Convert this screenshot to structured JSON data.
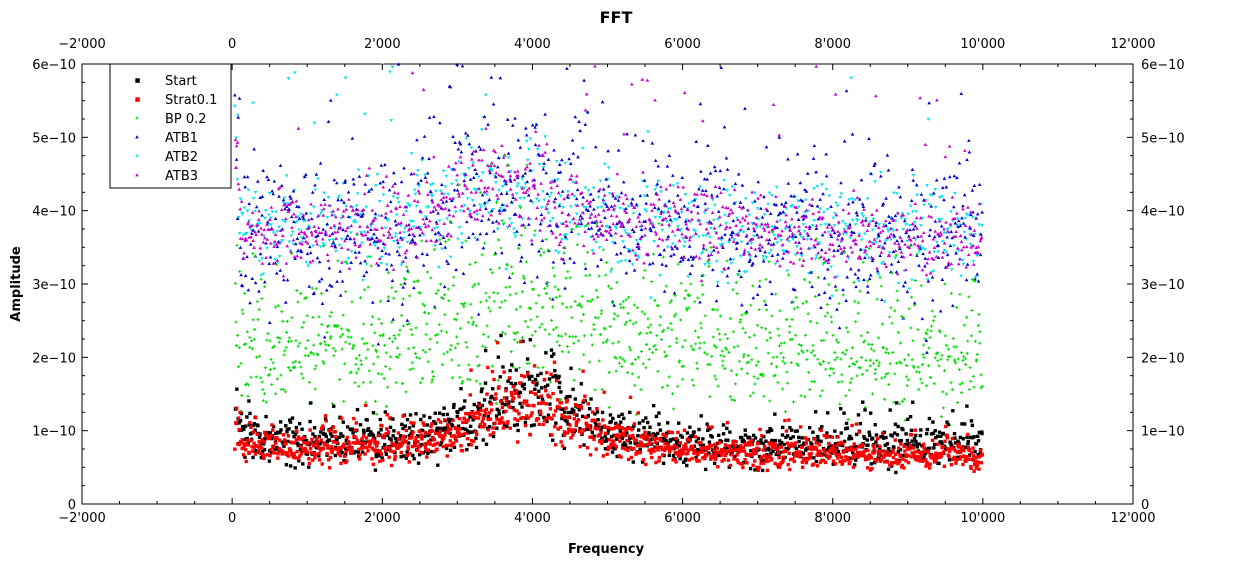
{
  "chart_data": {
    "type": "scatter",
    "title": "FFT",
    "xlabel": "Frequency",
    "ylabel": "Amplitude",
    "xlim": [
      -2000,
      12000
    ],
    "ylim": [
      0,
      6e-10
    ],
    "x_ticks": [
      -2000,
      0,
      2000,
      4000,
      6000,
      8000,
      10000,
      12000
    ],
    "x_tick_labels": [
      "−2'000",
      "0",
      "2'000",
      "4'000",
      "6'000",
      "8'000",
      "10'000",
      "12'000"
    ],
    "y_ticks": [
      0,
      1e-10,
      2e-10,
      3e-10,
      4e-10,
      5e-10,
      6e-10
    ],
    "y_tick_labels": [
      "0",
      "1e−10",
      "2e−10",
      "3e−10",
      "4e−10",
      "5e−10",
      "6e−10"
    ],
    "grid": false,
    "legend_position": "top-left",
    "x_range": [
      0,
      10000
    ],
    "series": [
      {
        "name": "Start",
        "color": "#000000",
        "marker": "square",
        "profile_x": [
          0,
          500,
          1000,
          1500,
          2000,
          2500,
          3000,
          3500,
          4000,
          4500,
          5000,
          5500,
          6000,
          7000,
          8000,
          9000,
          10000
        ],
        "profile_y": [
          1.05e-10,
          8.5e-11,
          8.5e-11,
          8.5e-11,
          9e-11,
          9.5e-11,
          1.05e-10,
          1.35e-10,
          1.55e-10,
          1.3e-10,
          1e-10,
          9e-11,
          8.5e-11,
          8e-11,
          8e-11,
          8e-11,
          8e-11
        ]
      },
      {
        "name": "Strat0.1",
        "color": "#ff0000",
        "marker": "square",
        "profile_x": [
          0,
          500,
          1000,
          1500,
          2000,
          2500,
          3000,
          3500,
          4000,
          4500,
          5000,
          5500,
          6000,
          7000,
          8000,
          9000,
          10000
        ],
        "profile_y": [
          8.5e-11,
          7.5e-11,
          7.5e-11,
          7.5e-11,
          8e-11,
          8.5e-11,
          9.5e-11,
          1.25e-10,
          1.4e-10,
          1.15e-10,
          9e-11,
          8e-11,
          7.5e-11,
          7e-11,
          7e-11,
          6.5e-11,
          6.5e-11
        ]
      },
      {
        "name": "BP 0.2",
        "color": "#00dd00",
        "marker": "plus",
        "profile_x": [
          0,
          1000,
          2000,
          3000,
          3500,
          4000,
          4500,
          5000,
          6000,
          7000,
          8000,
          9000,
          10000
        ],
        "profile_y": [
          2.1e-10,
          2.1e-10,
          2.2e-10,
          2.5e-10,
          2.7e-10,
          2.75e-10,
          2.6e-10,
          2.4e-10,
          2.25e-10,
          2.15e-10,
          2.15e-10,
          2.1e-10,
          2.1e-10
        ]
      },
      {
        "name": "ATB1",
        "color": "#0000cc",
        "marker": "triangle-up",
        "profile_x": [
          0,
          1000,
          2000,
          3000,
          3500,
          4000,
          4500,
          5000,
          6000,
          7000,
          8000,
          9000,
          10000
        ],
        "profile_y": [
          3.7e-10,
          3.7e-10,
          3.8e-10,
          4.2e-10,
          4.4e-10,
          4.3e-10,
          4.1e-10,
          3.9e-10,
          3.75e-10,
          3.7e-10,
          3.7e-10,
          3.65e-10,
          3.6e-10
        ]
      },
      {
        "name": "ATB2",
        "color": "#00e5ee",
        "marker": "triangle-down",
        "profile_x": [
          0,
          1000,
          2000,
          3000,
          3500,
          4000,
          4500,
          5000,
          6000,
          7000,
          8000,
          9000,
          10000
        ],
        "profile_y": [
          3.75e-10,
          3.75e-10,
          3.85e-10,
          4.15e-10,
          4.3e-10,
          4.25e-10,
          4.05e-10,
          3.9e-10,
          3.8e-10,
          3.75e-10,
          3.7e-10,
          3.7e-10,
          3.65e-10
        ]
      },
      {
        "name": "ATB3",
        "color": "#cc00cc",
        "marker": "triangle-up",
        "profile_x": [
          0,
          1000,
          2000,
          3000,
          3500,
          4000,
          4500,
          5000,
          6000,
          7000,
          8000,
          9000,
          10000
        ],
        "profile_y": [
          3.7e-10,
          3.7e-10,
          3.8e-10,
          4.2e-10,
          4.4e-10,
          4.3e-10,
          4.05e-10,
          3.9e-10,
          3.8e-10,
          3.7e-10,
          3.65e-10,
          3.65e-10,
          3.6e-10
        ]
      }
    ]
  }
}
